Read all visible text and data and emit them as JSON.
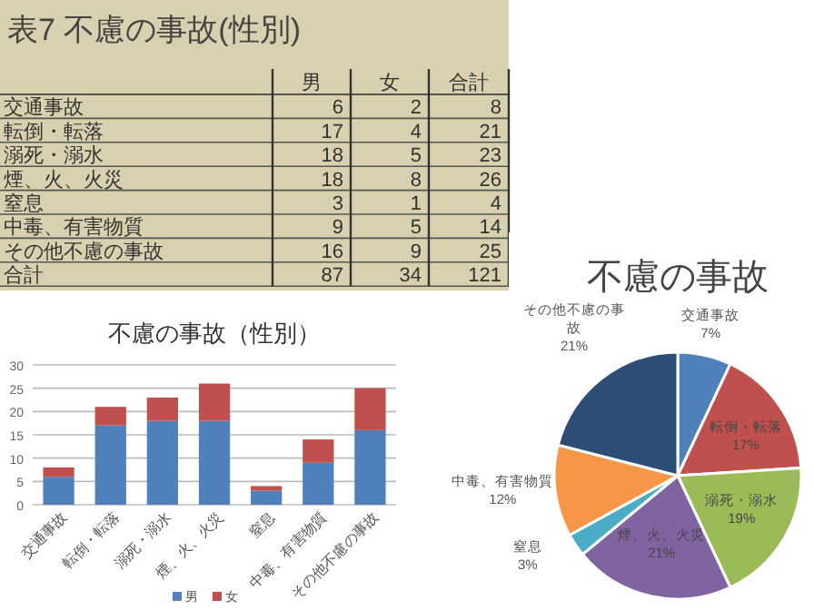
{
  "chart_data": [
    {
      "type": "other",
      "title": "表7 不慮の事故(性別)",
      "categories": [
        "交通事故",
        "転倒・転落",
        "溺死・溺水",
        "煙、火、火災",
        "窒息",
        "中毒、有害物質",
        "その他不慮の事故",
        "合計"
      ],
      "annotations": [
        "男",
        "女",
        "合計",
        "6",
        "2",
        "8",
        "17",
        "4",
        "21",
        "18",
        "5",
        "23",
        "18",
        "8",
        "26",
        "3",
        "1",
        "4",
        "9",
        "5",
        "14",
        "16",
        "9",
        "25",
        "87",
        "34",
        "121"
      ]
    },
    {
      "type": "bar",
      "stacked": true,
      "title": "不慮の事故（性別）",
      "categories": [
        "交通事故",
        "転倒・転落",
        "溺死・溺水",
        "煙、火、火災",
        "窒息",
        "中毒、有害物質",
        "その他不慮の事故"
      ],
      "series": [
        {
          "name": "男",
          "color": "#4f81bd",
          "values": [
            6,
            17,
            18,
            18,
            3,
            9,
            16
          ]
        },
        {
          "name": "女",
          "color": "#c0504d",
          "values": [
            2,
            4,
            5,
            8,
            1,
            5,
            9
          ]
        }
      ],
      "ylim": [
        0,
        30
      ],
      "yticks": [
        0,
        5,
        10,
        15,
        20,
        25,
        30
      ],
      "grid": "y",
      "legend": "bottom"
    },
    {
      "type": "pie",
      "title": "不慮の事故",
      "categories": [
        "交通事故",
        "転倒・転落",
        "溺死・溺水",
        "煙、火、火災",
        "窒息",
        "中毒、有害物質",
        "その他不慮の事故"
      ],
      "values": [
        7,
        17,
        19,
        21,
        3,
        12,
        21
      ],
      "colors": [
        "#4f81bd",
        "#c0504d",
        "#9bbb59",
        "#8064a2",
        "#4bacc6",
        "#f79646",
        "#2c4d75"
      ],
      "value_labels": [
        "7%",
        "17%",
        "19%",
        "21%",
        "3%",
        "12%",
        "21%"
      ]
    }
  ]
}
